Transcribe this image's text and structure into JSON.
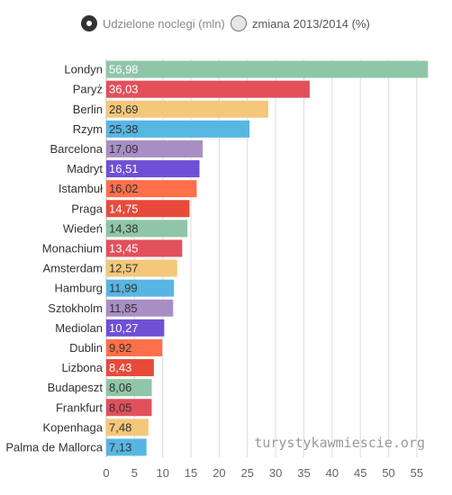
{
  "legend": {
    "option1": "Udzielone noclegi (mln)",
    "option2": "zmiana 2013/2014 (%)"
  },
  "watermark": "turystykawmiescie.org",
  "chart_data": {
    "type": "bar",
    "orientation": "horizontal",
    "categories": [
      "Londyn",
      "Paryż",
      "Berlin",
      "Rzym",
      "Barcelona",
      "Madryt",
      "Istambuł",
      "Praga",
      "Wiedeń",
      "Monachium",
      "Amsterdam",
      "Hamburg",
      "Sztokholm",
      "Mediolan",
      "Dublin",
      "Lizbona",
      "Budapeszt",
      "Frankfurt",
      "Kopenhaga",
      "Palma de Mallorca"
    ],
    "values": [
      56.98,
      36.03,
      28.69,
      25.38,
      17.09,
      16.51,
      16.02,
      14.75,
      14.38,
      13.45,
      12.57,
      11.99,
      11.85,
      10.27,
      9.92,
      8.43,
      8.06,
      8.05,
      7.48,
      7.13
    ],
    "labels": [
      "56,98",
      "36,03",
      "28,69",
      "25,38",
      "17,09",
      "16,51",
      "16,02",
      "14,75",
      "14,38",
      "13,45",
      "12,57",
      "11,99",
      "11,85",
      "10,27",
      "9,92",
      "8,43",
      "8,06",
      "8,05",
      "7,48",
      "7,13"
    ],
    "colors": [
      "#8fc6a7",
      "#e2505c",
      "#f4c87a",
      "#58b6e3",
      "#a98ec5",
      "#6f4fd4",
      "#ff6f4a",
      "#e84a3a",
      "#8fc6a7",
      "#e2505c",
      "#f4c87a",
      "#58b6e3",
      "#a98ec5",
      "#6f4fd4",
      "#ff6f4a",
      "#e84a3a",
      "#8fc6a7",
      "#e2505c",
      "#f4c87a",
      "#58b6e3"
    ],
    "label_colors": [
      "#ffffff",
      "#ffffff",
      "#333333",
      "#333333",
      "#333333",
      "#ffffff",
      "#333333",
      "#ffffff",
      "#333333",
      "#ffffff",
      "#333333",
      "#333333",
      "#333333",
      "#ffffff",
      "#333333",
      "#ffffff",
      "#333333",
      "#333333",
      "#333333",
      "#333333"
    ],
    "xticks": [
      0,
      5,
      10,
      15,
      20,
      25,
      30,
      35,
      40,
      45,
      50,
      55
    ],
    "xlim": [
      0,
      59
    ],
    "grid": true,
    "legend_position": "top"
  }
}
